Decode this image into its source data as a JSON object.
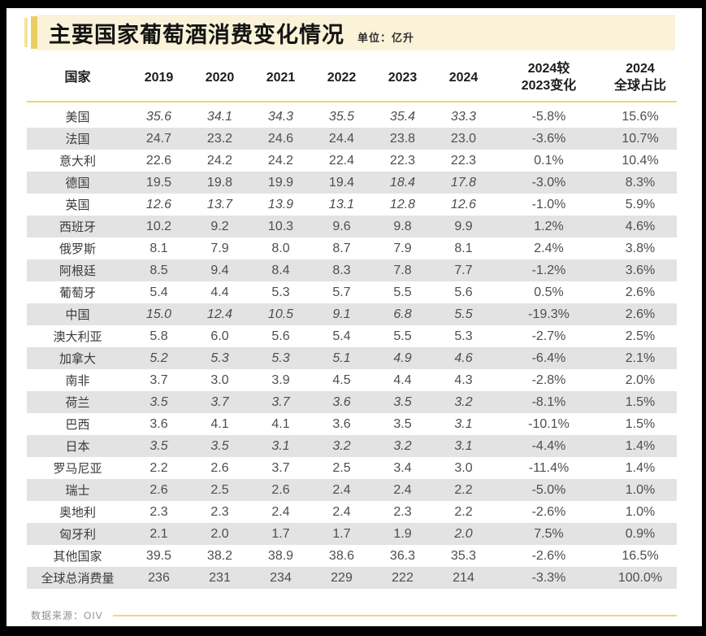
{
  "header": {
    "title": "主要国家葡萄酒消费变化情况",
    "unit": "单位：亿升"
  },
  "footer": {
    "source": "数据来源：OIV"
  },
  "colors": {
    "frame": "#000000",
    "title_background": "#faf3d9",
    "gold_bar": "#eccd62",
    "light_bar": "#f4e39a",
    "yellow_rule": "#e9d76f",
    "row_shade": "#e3e3e3",
    "body_text": "#4e4e4e"
  },
  "chart_data": {
    "type": "table",
    "title": "主要国家葡萄酒消费变化情况",
    "unit": "亿升",
    "note": "italics flags mark values printed in italic (estimates)",
    "columns": [
      "国家",
      "2019",
      "2020",
      "2021",
      "2022",
      "2023",
      "2024",
      "2024较\n2023变化",
      "2024\n全球占比"
    ],
    "rows": [
      {
        "country": "美国",
        "values": [
          "35.6",
          "34.1",
          "34.3",
          "35.5",
          "35.4",
          "33.3"
        ],
        "italics": [
          true,
          true,
          true,
          true,
          true,
          true
        ],
        "change": "-5.8%",
        "share": "15.6%"
      },
      {
        "country": "法国",
        "values": [
          "24.7",
          "23.2",
          "24.6",
          "24.4",
          "23.8",
          "23.0"
        ],
        "italics": [
          false,
          false,
          false,
          false,
          false,
          false
        ],
        "change": "-3.6%",
        "share": "10.7%"
      },
      {
        "country": "意大利",
        "values": [
          "22.6",
          "24.2",
          "24.2",
          "22.4",
          "22.3",
          "22.3"
        ],
        "italics": [
          false,
          false,
          false,
          false,
          false,
          false
        ],
        "change": "0.1%",
        "share": "10.4%"
      },
      {
        "country": "德国",
        "values": [
          "19.5",
          "19.8",
          "19.9",
          "19.4",
          "18.4",
          "17.8"
        ],
        "italics": [
          false,
          false,
          false,
          false,
          true,
          true
        ],
        "change": "-3.0%",
        "share": "8.3%"
      },
      {
        "country": "英国",
        "values": [
          "12.6",
          "13.7",
          "13.9",
          "13.1",
          "12.8",
          "12.6"
        ],
        "italics": [
          true,
          true,
          true,
          true,
          true,
          true
        ],
        "change": "-1.0%",
        "share": "5.9%"
      },
      {
        "country": "西班牙",
        "values": [
          "10.2",
          "9.2",
          "10.3",
          "9.6",
          "9.8",
          "9.9"
        ],
        "italics": [
          false,
          false,
          false,
          false,
          false,
          false
        ],
        "change": "1.2%",
        "share": "4.6%"
      },
      {
        "country": "俄罗斯",
        "values": [
          "8.1",
          "7.9",
          "8.0",
          "8.7",
          "7.9",
          "8.1"
        ],
        "italics": [
          false,
          false,
          false,
          false,
          false,
          false
        ],
        "change": "2.4%",
        "share": "3.8%"
      },
      {
        "country": "阿根廷",
        "values": [
          "8.5",
          "9.4",
          "8.4",
          "8.3",
          "7.8",
          "7.7"
        ],
        "italics": [
          false,
          false,
          false,
          false,
          false,
          false
        ],
        "change": "-1.2%",
        "share": "3.6%"
      },
      {
        "country": "葡萄牙",
        "values": [
          "5.4",
          "4.4",
          "5.3",
          "5.7",
          "5.5",
          "5.6"
        ],
        "italics": [
          false,
          false,
          false,
          false,
          false,
          false
        ],
        "change": "0.5%",
        "share": "2.6%"
      },
      {
        "country": "中国",
        "values": [
          "15.0",
          "12.4",
          "10.5",
          "9.1",
          "6.8",
          "5.5"
        ],
        "italics": [
          true,
          true,
          true,
          true,
          true,
          true
        ],
        "change": "-19.3%",
        "share": "2.6%"
      },
      {
        "country": "澳大利亚",
        "values": [
          "5.8",
          "6.0",
          "5.6",
          "5.4",
          "5.5",
          "5.3"
        ],
        "italics": [
          false,
          false,
          false,
          false,
          false,
          false
        ],
        "change": "-2.7%",
        "share": "2.5%"
      },
      {
        "country": "加拿大",
        "values": [
          "5.2",
          "5.3",
          "5.3",
          "5.1",
          "4.9",
          "4.6"
        ],
        "italics": [
          true,
          true,
          true,
          true,
          true,
          true
        ],
        "change": "-6.4%",
        "share": "2.1%"
      },
      {
        "country": "南非",
        "values": [
          "3.7",
          "3.0",
          "3.9",
          "4.5",
          "4.4",
          "4.3"
        ],
        "italics": [
          false,
          false,
          false,
          false,
          false,
          false
        ],
        "change": "-2.8%",
        "share": "2.0%"
      },
      {
        "country": "荷兰",
        "values": [
          "3.5",
          "3.7",
          "3.7",
          "3.6",
          "3.5",
          "3.2"
        ],
        "italics": [
          true,
          true,
          true,
          true,
          true,
          true
        ],
        "change": "-8.1%",
        "share": "1.5%"
      },
      {
        "country": "巴西",
        "values": [
          "3.6",
          "4.1",
          "4.1",
          "3.6",
          "3.5",
          "3.1"
        ],
        "italics": [
          false,
          false,
          false,
          false,
          false,
          true
        ],
        "change": "-10.1%",
        "share": "1.5%"
      },
      {
        "country": "日本",
        "values": [
          "3.5",
          "3.5",
          "3.1",
          "3.2",
          "3.2",
          "3.1"
        ],
        "italics": [
          true,
          true,
          true,
          true,
          true,
          true
        ],
        "change": "-4.4%",
        "share": "1.4%"
      },
      {
        "country": "罗马尼亚",
        "values": [
          "2.2",
          "2.6",
          "3.7",
          "2.5",
          "3.4",
          "3.0"
        ],
        "italics": [
          false,
          false,
          false,
          false,
          false,
          false
        ],
        "change": "-11.4%",
        "share": "1.4%"
      },
      {
        "country": "瑞士",
        "values": [
          "2.6",
          "2.5",
          "2.6",
          "2.4",
          "2.4",
          "2.2"
        ],
        "italics": [
          false,
          false,
          false,
          false,
          false,
          false
        ],
        "change": "-5.0%",
        "share": "1.0%"
      },
      {
        "country": "奥地利",
        "values": [
          "2.3",
          "2.3",
          "2.4",
          "2.4",
          "2.3",
          "2.2"
        ],
        "italics": [
          false,
          false,
          false,
          false,
          false,
          false
        ],
        "change": "-2.6%",
        "share": "1.0%"
      },
      {
        "country": "匈牙利",
        "values": [
          "2.1",
          "2.0",
          "1.7",
          "1.7",
          "1.9",
          "2.0"
        ],
        "italics": [
          false,
          false,
          false,
          false,
          false,
          true
        ],
        "change": "7.5%",
        "share": "0.9%"
      },
      {
        "country": "其他国家",
        "values": [
          "39.5",
          "38.2",
          "38.9",
          "38.6",
          "36.3",
          "35.3"
        ],
        "italics": [
          false,
          false,
          false,
          false,
          false,
          false
        ],
        "change": "-2.6%",
        "share": "16.5%"
      },
      {
        "country": "全球总消费量",
        "values": [
          "236",
          "231",
          "234",
          "229",
          "222",
          "214"
        ],
        "italics": [
          false,
          false,
          false,
          false,
          false,
          false
        ],
        "change": "-3.3%",
        "share": "100.0%"
      }
    ]
  }
}
